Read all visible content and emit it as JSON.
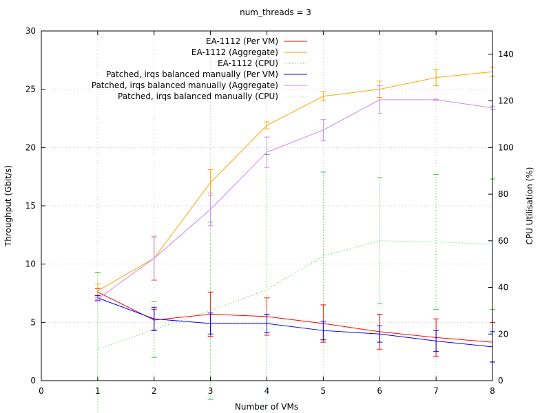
{
  "chart_data": {
    "type": "line",
    "title": "num_threads = 3",
    "xlabel": "Number of VMs",
    "ylabel": "Throughput (Gbit/s)",
    "y2label": "CPU Utilisation (%)",
    "xlim": [
      0,
      8
    ],
    "ylim": [
      0,
      30
    ],
    "y2lim": [
      0,
      150
    ],
    "x_ticks": [
      0,
      1,
      2,
      3,
      4,
      5,
      6,
      7,
      8
    ],
    "y_ticks": [
      0,
      5,
      10,
      15,
      20,
      25,
      30
    ],
    "y2_ticks": [
      0,
      20,
      40,
      60,
      80,
      100,
      120,
      140
    ],
    "grid": true,
    "legend_position": "top-center",
    "x": [
      1,
      2,
      3,
      4,
      5,
      6,
      7,
      8
    ],
    "series": [
      {
        "name": "EA-1112 (Per VM)",
        "axis": "y",
        "color": "#ff0000",
        "style": "solid",
        "values": [
          7.6,
          5.2,
          5.7,
          5.5,
          4.9,
          4.2,
          3.7,
          3.3
        ],
        "errors": [
          0.3,
          0.9,
          1.9,
          1.6,
          1.6,
          1.5,
          1.6,
          1.7
        ]
      },
      {
        "name": "EA-1112 (Aggregate)",
        "axis": "y",
        "color": "#ffa500",
        "style": "solid",
        "values": [
          7.7,
          10.5,
          17.0,
          21.9,
          24.4,
          25.0,
          26.0,
          26.5
        ],
        "errors": [
          0.6,
          1.8,
          1.1,
          0.3,
          0.4,
          0.7,
          0.7,
          0.4
        ]
      },
      {
        "name": "EA-1112 (CPU)",
        "axis": "y2",
        "color": "#33cc33",
        "style": "dotted",
        "values": [
          13.5,
          22,
          30,
          39,
          53.5,
          60,
          59.5,
          58.5
        ],
        "errors": [
          33,
          12,
          38,
          58,
          36,
          27,
          29,
          28
        ]
      },
      {
        "name": "Patched, irqs balanced manually (Per VM)",
        "axis": "y",
        "color": "#0000ff",
        "style": "solid",
        "values": [
          7.1,
          5.3,
          4.9,
          4.9,
          4.3,
          4.0,
          3.4,
          2.9
        ],
        "errors": [
          0.2,
          1.0,
          0.9,
          0.8,
          0.8,
          0.7,
          0.9,
          1.3
        ]
      },
      {
        "name": "Patched, irqs balanced manually (Aggregate)",
        "axis": "y",
        "color": "#cc88ee",
        "style": "solid",
        "values": [
          7.0,
          10.5,
          14.7,
          19.6,
          21.5,
          24.1,
          24.1,
          23.4
        ],
        "errors": [
          0.2,
          1.9,
          1.4,
          1.3,
          0.9,
          1.2,
          0.05,
          0.15
        ]
      },
      {
        "name": "Patched, irqs balanced manually (CPU)",
        "axis": "y2",
        "color": "#90ee90",
        "style": "dotted",
        "values": [
          null,
          null,
          null,
          null,
          null,
          null,
          null,
          null
        ],
        "errors": [
          null,
          null,
          null,
          null,
          null,
          null,
          null,
          null
        ]
      }
    ]
  }
}
